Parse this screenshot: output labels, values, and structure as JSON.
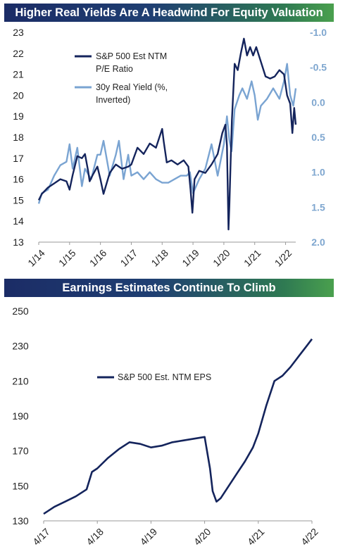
{
  "chart_data": [
    {
      "type": "line",
      "title": "Higher Real Yields Are A Headwind For Equity Valuation",
      "x_tick_labels": [
        "1/14",
        "1/15",
        "1/16",
        "1/17",
        "1/18",
        "1/19",
        "1/20",
        "1/21",
        "1/22"
      ],
      "y_left": {
        "lim": [
          13,
          23
        ],
        "ticks": [
          13,
          14,
          15,
          16,
          17,
          18,
          19,
          20,
          21,
          22,
          23
        ]
      },
      "y_right": {
        "lim": [
          -1.0,
          2.0
        ],
        "inverted": true,
        "ticks": [
          "-1.0",
          "-0.5",
          "0.0",
          "0.5",
          "1.0",
          "1.5",
          "2.0"
        ],
        "tick_values": [
          -1.0,
          -0.5,
          0.0,
          0.5,
          1.0,
          1.5,
          2.0
        ]
      },
      "legend_position": "top-left",
      "series": [
        {
          "name": "S&P 500 Est NTM P/E Ratio",
          "legend_lines": [
            "S&P 500 Est NTM",
            "P/E Ratio"
          ],
          "axis": "left",
          "color": "#14245c",
          "x": [
            2014.0,
            2014.1,
            2014.3,
            2014.5,
            2014.7,
            2014.9,
            2015.0,
            2015.1,
            2015.25,
            2015.4,
            2015.5,
            2015.6,
            2015.65,
            2015.75,
            2015.9,
            2016.0,
            2016.1,
            2016.3,
            2016.5,
            2016.7,
            2016.9,
            2017.0,
            2017.2,
            2017.4,
            2017.6,
            2017.8,
            2018.0,
            2018.05,
            2018.15,
            2018.3,
            2018.5,
            2018.7,
            2018.85,
            2018.92,
            2018.98,
            2019.05,
            2019.2,
            2019.4,
            2019.6,
            2019.8,
            2019.95,
            2020.05,
            2020.1,
            2020.15,
            2020.18,
            2020.22,
            2020.26,
            2020.35,
            2020.45,
            2020.55,
            2020.65,
            2020.75,
            2020.85,
            2020.95,
            2021.05,
            2021.2,
            2021.35,
            2021.5,
            2021.65,
            2021.8,
            2021.95,
            2022.05,
            2022.15,
            2022.22,
            2022.28,
            2022.33
          ],
          "values": [
            15.0,
            15.3,
            15.6,
            15.8,
            16.0,
            15.9,
            15.5,
            16.2,
            17.1,
            17.0,
            17.2,
            16.4,
            15.9,
            16.2,
            16.6,
            16.0,
            15.3,
            16.3,
            16.7,
            16.5,
            16.6,
            16.7,
            17.5,
            17.2,
            17.7,
            17.5,
            18.4,
            17.8,
            16.8,
            16.9,
            16.7,
            16.9,
            16.6,
            15.5,
            14.4,
            16.0,
            16.4,
            16.3,
            16.7,
            17.2,
            18.2,
            18.6,
            17.6,
            13.6,
            14.8,
            16.8,
            18.8,
            21.5,
            21.2,
            22.0,
            22.7,
            21.9,
            22.3,
            21.9,
            22.3,
            21.6,
            20.9,
            20.8,
            20.9,
            21.2,
            21.0,
            20.0,
            19.6,
            18.2,
            19.4,
            18.6
          ]
        },
        {
          "name": "30y Real Yield (%, Inverted)",
          "legend_lines": [
            "30y Real Yield (%,",
            "Inverted)"
          ],
          "axis": "right",
          "color": "#7aa4d2",
          "x": [
            2014.0,
            2014.1,
            2014.3,
            2014.5,
            2014.7,
            2014.9,
            2015.0,
            2015.1,
            2015.25,
            2015.4,
            2015.5,
            2015.7,
            2015.9,
            2016.0,
            2016.1,
            2016.3,
            2016.5,
            2016.6,
            2016.75,
            2016.9,
            2017.0,
            2017.2,
            2017.4,
            2017.6,
            2017.8,
            2018.0,
            2018.2,
            2018.4,
            2018.6,
            2018.8,
            2018.9,
            2019.0,
            2019.2,
            2019.4,
            2019.6,
            2019.8,
            2020.0,
            2020.1,
            2020.18,
            2020.25,
            2020.35,
            2020.5,
            2020.6,
            2020.75,
            2020.9,
            2021.0,
            2021.1,
            2021.2,
            2021.4,
            2021.6,
            2021.8,
            2021.95,
            2022.05,
            2022.15,
            2022.25,
            2022.33
          ],
          "values": [
            1.45,
            1.3,
            1.25,
            1.05,
            0.9,
            0.85,
            0.6,
            0.95,
            0.65,
            1.2,
            0.95,
            1.1,
            0.75,
            0.75,
            0.55,
            1.05,
            0.75,
            0.55,
            1.1,
            0.75,
            1.05,
            1.0,
            1.1,
            1.0,
            1.1,
            1.15,
            1.15,
            1.1,
            1.05,
            1.05,
            1.0,
            1.3,
            1.1,
            0.95,
            0.6,
            1.05,
            0.6,
            0.2,
            0.55,
            0.7,
            0.1,
            -0.1,
            -0.2,
            -0.05,
            -0.3,
            -0.1,
            0.25,
            0.05,
            -0.05,
            -0.2,
            -0.05,
            -0.3,
            -0.55,
            -0.1,
            0.05,
            -0.2
          ]
        }
      ]
    },
    {
      "type": "line",
      "title": "Earnings Estimates Continue To Climb",
      "x_tick_labels": [
        "4/17",
        "4/18",
        "4/19",
        "4/20",
        "4/21",
        "4/22"
      ],
      "y_left": {
        "lim": [
          130,
          250
        ],
        "ticks": [
          130,
          150,
          170,
          190,
          210,
          230,
          250
        ]
      },
      "legend_position": "upper-middle",
      "series": [
        {
          "name": "S&P 500 Est. NTM EPS",
          "color": "#14245c",
          "x": [
            2017.0,
            2017.2,
            2017.4,
            2017.6,
            2017.8,
            2017.9,
            2018.0,
            2018.2,
            2018.4,
            2018.6,
            2018.8,
            2019.0,
            2019.2,
            2019.4,
            2019.6,
            2019.8,
            2020.0,
            2020.1,
            2020.15,
            2020.22,
            2020.3,
            2020.45,
            2020.6,
            2020.75,
            2020.9,
            2021.0,
            2021.15,
            2021.3,
            2021.45,
            2021.6,
            2021.75,
            2021.9,
            2022.0
          ],
          "values": [
            134,
            138,
            141,
            144,
            148,
            158,
            160,
            166,
            171,
            175,
            174,
            172,
            173,
            175,
            176,
            177,
            178,
            160,
            147,
            141,
            143,
            150,
            157,
            164,
            172,
            180,
            196,
            210,
            213,
            218,
            224,
            230,
            234
          ]
        }
      ]
    }
  ]
}
